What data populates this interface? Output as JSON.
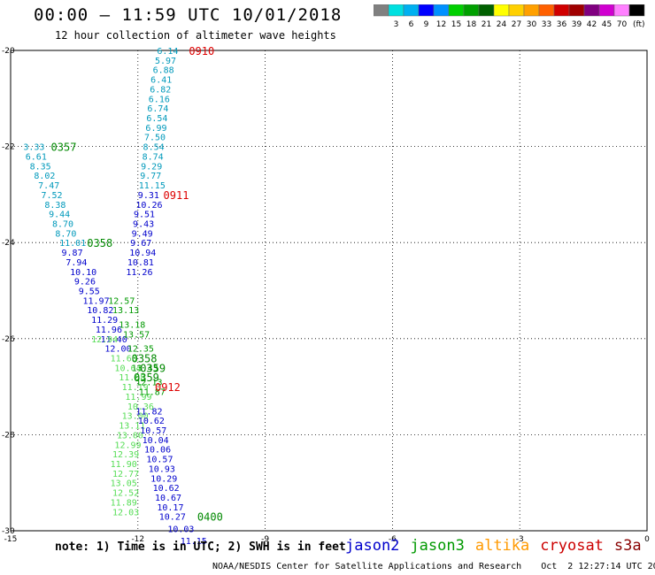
{
  "header": {
    "title": "00:00 – 11:59 UTC 10/01/2018",
    "subtitle": "12 hour collection of altimeter wave heights"
  },
  "colorbar": {
    "colors": [
      "#808080",
      "#00e0e0",
      "#00b0f0",
      "#0000ff",
      "#0090ff",
      "#00d000",
      "#00a000",
      "#006000",
      "#ffff00",
      "#ffd000",
      "#ffa000",
      "#ff6000",
      "#d00000",
      "#a00000",
      "#800080",
      "#d000d0",
      "#ff80ff",
      "#000000"
    ],
    "labels": [
      "3",
      "6",
      "9",
      "12",
      "15",
      "18",
      "21",
      "24",
      "27",
      "30",
      "33",
      "36",
      "39",
      "42",
      "45",
      "70"
    ],
    "unit": "(ft)"
  },
  "footer": {
    "note": "note: 1) Time is in UTC; 2) SWH is in feet",
    "satellites": [
      {
        "name": "jason2",
        "color": "#0000cc"
      },
      {
        "name": "jason3",
        "color": "#009900"
      },
      {
        "name": "altika",
        "color": "#ff9900"
      },
      {
        "name": "cryosat",
        "color": "#cc0000"
      },
      {
        "name": "s3a",
        "color": "#880000"
      }
    ],
    "credit": "NOAA/NESDIS Center for Satellite Applications and Research",
    "timestamp": "Oct  2 12:27:14 UTC 2018"
  },
  "chart_data": {
    "type": "scatter",
    "xlim": [
      -15,
      0
    ],
    "ylim": [
      -30,
      -20
    ],
    "xticks": [
      -15,
      -12,
      -9,
      -6,
      -3,
      0
    ],
    "yticks": [
      -20,
      -22,
      -24,
      -26,
      -28,
      -30
    ],
    "xtick_labels": [
      "-15",
      "-12",
      "-9",
      "-6",
      "-3",
      "0"
    ],
    "ytick_labels": [
      "-20",
      "-22",
      "-24",
      "-26",
      "-28",
      "-30"
    ],
    "grid": true,
    "tracks": [
      {
        "satellite": "jason3",
        "time": "0357",
        "time_pos": [
          -14.05,
          -22.0
        ],
        "color": "#0099bb",
        "points": [
          [
            -14.7,
            -22.0,
            "3.33"
          ],
          [
            -14.65,
            -22.2,
            "6.61"
          ],
          [
            -14.55,
            -22.4,
            "8.35"
          ],
          [
            -14.45,
            -22.6,
            "8.02"
          ],
          [
            -14.35,
            -22.8,
            "7.47"
          ],
          [
            -14.28,
            -23.0,
            "7.52"
          ],
          [
            -14.2,
            -23.2,
            "8.38"
          ],
          [
            -14.1,
            -23.4,
            "9.44"
          ],
          [
            -14.02,
            -23.6,
            "8.70"
          ],
          [
            -13.95,
            -23.8,
            "8.70"
          ],
          [
            -13.85,
            -24.0,
            "11.01"
          ]
        ]
      },
      {
        "satellite": "jason3",
        "time": "0358",
        "time_pos": [
          -13.2,
          -24.0
        ],
        "color": "#0000cc",
        "points": [
          [
            -13.8,
            -24.2,
            "9.87"
          ],
          [
            -13.7,
            -24.4,
            "7.94"
          ],
          [
            -13.6,
            -24.6,
            "10.10"
          ],
          [
            -13.5,
            -24.8,
            "9.26"
          ],
          [
            -13.4,
            -25.0,
            "9.55"
          ],
          [
            -13.3,
            -25.2,
            "11.97"
          ],
          [
            -13.2,
            -25.4,
            "10.82"
          ],
          [
            -13.1,
            -25.6,
            "11.29"
          ],
          [
            -13.0,
            -25.8,
            "11.96"
          ],
          [
            -12.88,
            -26.0,
            "11.40"
          ],
          [
            -12.78,
            -26.2,
            "12.00"
          ]
        ]
      },
      {
        "satellite": "jason3",
        "time": "0358",
        "time_pos": [
          -12.15,
          -26.4
        ],
        "color": "#55dd55",
        "points": [
          [
            -13.1,
            -26.0,
            "12.94"
          ],
          [
            -12.65,
            -26.4,
            "11.63"
          ],
          [
            -12.55,
            -26.6,
            "10.64"
          ],
          [
            -12.45,
            -26.8,
            "11.68"
          ],
          [
            -12.38,
            -27.0,
            "11.19"
          ],
          [
            -12.3,
            -27.2,
            "11.99"
          ],
          [
            -12.25,
            -27.4,
            "10.36"
          ],
          [
            -12.38,
            -27.6,
            "13.00"
          ],
          [
            -12.45,
            -27.8,
            "13.11"
          ],
          [
            -12.5,
            -28.0,
            "13.00"
          ],
          [
            -12.55,
            -28.2,
            "12.99"
          ],
          [
            -12.6,
            -28.4,
            "12.39"
          ],
          [
            -12.65,
            -28.6,
            "11.90"
          ],
          [
            -12.6,
            -28.8,
            "12.77"
          ],
          [
            -12.65,
            -29.0,
            "13.05"
          ],
          [
            -12.6,
            -29.2,
            "12.52"
          ],
          [
            -12.65,
            -29.4,
            "11.89"
          ],
          [
            -12.6,
            -29.6,
            "12.03"
          ]
        ]
      },
      {
        "satellite": "jason3",
        "time": "0359",
        "time_pos": [
          -11.95,
          -26.6
        ],
        "color": "#009900",
        "points": [
          [
            -12.7,
            -25.2,
            "12.57"
          ],
          [
            -12.6,
            -25.4,
            "13.13"
          ],
          [
            -12.45,
            -25.7,
            "13.18"
          ],
          [
            -12.35,
            -25.9,
            "13.57"
          ],
          [
            -12.25,
            -26.2,
            "12.35"
          ],
          [
            -12.15,
            -26.6,
            "13.43"
          ]
        ]
      },
      {
        "satellite": "jason3",
        "time": "0359",
        "time_pos": [
          -12.1,
          -26.8
        ],
        "color": "#009900",
        "points": [
          [
            -12.05,
            -26.9,
            "12.13"
          ],
          [
            -11.98,
            -27.1,
            "11.87"
          ]
        ]
      },
      {
        "satellite": "cryosat",
        "time": "0910",
        "time_pos": [
          -10.8,
          -20.0
        ],
        "color": "#0099bb",
        "points": [
          [
            -11.55,
            -20.0,
            "6.14"
          ],
          [
            -11.6,
            -20.2,
            "5.97"
          ],
          [
            -11.65,
            -20.4,
            "6.88"
          ],
          [
            -11.7,
            -20.6,
            "6.41"
          ],
          [
            -11.72,
            -20.8,
            "6.82"
          ],
          [
            -11.75,
            -21.0,
            "6.16"
          ],
          [
            -11.78,
            -21.2,
            "6.74"
          ],
          [
            -11.8,
            -21.4,
            "6.54"
          ],
          [
            -11.82,
            -21.6,
            "6.99"
          ],
          [
            -11.85,
            -21.8,
            "7.50"
          ],
          [
            -11.88,
            -22.0,
            "8.54"
          ],
          [
            -11.9,
            -22.2,
            "8.74"
          ],
          [
            -11.93,
            -22.4,
            "9.29"
          ],
          [
            -11.95,
            -22.6,
            "9.77"
          ],
          [
            -11.98,
            -22.8,
            "11.15"
          ]
        ]
      },
      {
        "satellite": "cryosat",
        "time": "0911",
        "time_pos": [
          -11.4,
          -23.0
        ],
        "color": "#0000cc",
        "points": [
          [
            -12.0,
            -23.0,
            "9.31"
          ],
          [
            -12.05,
            -23.2,
            "10.26"
          ],
          [
            -12.1,
            -23.4,
            "9.51"
          ],
          [
            -12.12,
            -23.6,
            "9.43"
          ],
          [
            -12.15,
            -23.8,
            "9.49"
          ],
          [
            -12.18,
            -24.0,
            "9.67"
          ],
          [
            -12.2,
            -24.2,
            "10.94"
          ],
          [
            -12.25,
            -24.4,
            "10.81"
          ],
          [
            -12.28,
            -24.6,
            "11.26"
          ]
        ]
      },
      {
        "satellite": "cryosat",
        "time": "0912",
        "time_pos": [
          -11.6,
          -27.0
        ],
        "color": "#0000cc",
        "points": [
          [
            -12.05,
            -27.5,
            "11.82"
          ],
          [
            -12.0,
            -27.7,
            "10.62"
          ],
          [
            -11.95,
            -27.9,
            "10.57"
          ],
          [
            -11.9,
            -28.1,
            "10.04"
          ],
          [
            -11.85,
            -28.3,
            "10.06"
          ],
          [
            -11.8,
            -28.5,
            "10.57"
          ],
          [
            -11.75,
            -28.7,
            "10.93"
          ],
          [
            -11.7,
            -28.9,
            "10.29"
          ],
          [
            -11.65,
            -29.1,
            "10.62"
          ],
          [
            -11.6,
            -29.3,
            "10.67"
          ],
          [
            -11.55,
            -29.5,
            "10.17"
          ],
          [
            -11.5,
            -29.7,
            "10.27"
          ],
          [
            -11.3,
            -29.95,
            "10.03"
          ],
          [
            -11.0,
            -30.2,
            "11.15"
          ]
        ]
      },
      {
        "satellite": "jason2",
        "time": "0400",
        "time_pos": [
          -10.6,
          -29.7
        ],
        "color": "#009900",
        "points": []
      }
    ]
  }
}
